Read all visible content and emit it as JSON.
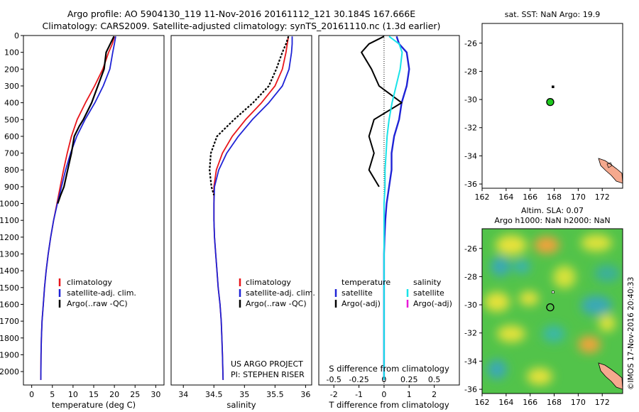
{
  "header": {
    "line1": "Argo profile: AO 5904130_119 11-Nov-2016 20161112_121 30.184S 167.666E",
    "line2": "Climatology: CARS2009. Satellite-adjusted climatology: synTS_20161110.nc (1.3d earlier)"
  },
  "colors": {
    "climatology": "#e8161b",
    "satellite": "#1f23d6",
    "argo": "#000000",
    "s_satellite": "#19e3e8",
    "s_argo": "#e81ad8",
    "land": "#f5a98e",
    "float_marker": "#1ec81e"
  },
  "legends": {
    "temp_panel": [
      "climatology",
      "satellite-adj. clim.",
      "Argo(..raw -QC)"
    ],
    "sal_panel": [
      "climatology",
      "satellite-adj. clim.",
      "Argo(..raw -QC)"
    ],
    "diff_panel": {
      "temperature_heading": "temperature",
      "salinity_heading": "salinity",
      "temperature_items": [
        "satellite",
        "Argo(-adj)"
      ],
      "salinity_items": [
        "satellite",
        "Argo(-adj)"
      ]
    }
  },
  "credits": {
    "project": "US ARGO PROJECT",
    "pi": "PI: STEPHEN RISER",
    "imos": "©IMOS 17-Nov-2016 20:40:33"
  },
  "map_top_title": "sat. SST: NaN Argo: 19.9",
  "map_bottom_title1": "Altim. SLA: 0.07",
  "map_bottom_title2": "Argo h1000: NaN h2000: NaN",
  "chart_data": [
    {
      "type": "line",
      "panel": "temperature",
      "xlabel": "temperature (deg C)",
      "ylabel": "",
      "xlim": [
        -2,
        32
      ],
      "ylim": [
        2080,
        0
      ],
      "y_inverted": true,
      "xticks": [
        0,
        5,
        10,
        15,
        20,
        25,
        30
      ],
      "yticks": [
        0,
        100,
        200,
        300,
        400,
        500,
        600,
        700,
        800,
        900,
        1000,
        1100,
        1200,
        1300,
        1400,
        1500,
        1600,
        1700,
        1800,
        1900,
        2000
      ],
      "series": [
        {
          "name": "climatology",
          "color_key": "climatology",
          "x": [
            20.0,
            19.5,
            18.6,
            17.2,
            15.2,
            13.0,
            11.0,
            9.6,
            8.6,
            7.7,
            6.9,
            6.1,
            5.3,
            4.6,
            4.0,
            3.5,
            3.1,
            2.8,
            2.5,
            2.35,
            2.25,
            2.2
          ],
          "y": [
            5,
            50,
            100,
            200,
            300,
            400,
            500,
            600,
            700,
            800,
            900,
            1000,
            1100,
            1200,
            1300,
            1400,
            1500,
            1600,
            1700,
            1800,
            1900,
            2050
          ]
        },
        {
          "name": "satellite-adj. clim.",
          "color_key": "satellite",
          "x": [
            20.3,
            20.0,
            19.6,
            18.9,
            17.3,
            15.3,
            12.9,
            10.9,
            9.4,
            8.2,
            7.2,
            6.2,
            5.3,
            4.6,
            4.0,
            3.5,
            3.1,
            2.8,
            2.5,
            2.35,
            2.25,
            2.2
          ],
          "y": [
            5,
            50,
            100,
            200,
            300,
            400,
            500,
            600,
            700,
            800,
            900,
            1000,
            1100,
            1200,
            1300,
            1400,
            1500,
            1600,
            1700,
            1800,
            1900,
            2050
          ]
        },
        {
          "name": "Argo(..raw -QC)",
          "color_key": "argo",
          "x": [
            19.9,
            19.0,
            18.0,
            17.5,
            16.0,
            14.5,
            12.5,
            11.5,
            10.3,
            9.6,
            8.7,
            7.8,
            7.0,
            6.3
          ],
          "y": [
            5,
            50,
            100,
            200,
            300,
            400,
            500,
            540,
            600,
            700,
            800,
            900,
            950,
            1000
          ]
        }
      ]
    },
    {
      "type": "line",
      "panel": "salinity",
      "xlabel": "salinity",
      "ylabel": "",
      "xlim": [
        33.8,
        36.1
      ],
      "ylim": [
        2080,
        0
      ],
      "y_inverted": true,
      "xticks": [
        34,
        34.5,
        35,
        35.5,
        36
      ],
      "series": [
        {
          "name": "climatology",
          "color_key": "climatology",
          "x": [
            35.72,
            35.7,
            35.68,
            35.62,
            35.5,
            35.28,
            35.02,
            34.8,
            34.64,
            34.54,
            34.5,
            34.5,
            34.5,
            34.51,
            34.53,
            34.55,
            34.57,
            34.6,
            34.62,
            34.63,
            34.64,
            34.65
          ],
          "y": [
            5,
            50,
            100,
            200,
            300,
            400,
            500,
            600,
            700,
            800,
            900,
            1000,
            1100,
            1200,
            1300,
            1400,
            1500,
            1600,
            1700,
            1800,
            1900,
            2050
          ]
        },
        {
          "name": "satellite-adj. clim.",
          "color_key": "satellite",
          "x": [
            35.78,
            35.78,
            35.77,
            35.73,
            35.62,
            35.4,
            35.13,
            34.9,
            34.71,
            34.58,
            34.51,
            34.5,
            34.5,
            34.51,
            34.53,
            34.55,
            34.57,
            34.6,
            34.62,
            34.63,
            34.64,
            34.65
          ],
          "y": [
            5,
            50,
            100,
            200,
            300,
            400,
            500,
            600,
            700,
            800,
            900,
            1000,
            1100,
            1200,
            1300,
            1400,
            1500,
            1600,
            1700,
            1800,
            1900,
            2050
          ]
        },
        {
          "name": "Argo(..raw -QC)",
          "color_key": "argo",
          "x": [
            35.72,
            35.68,
            35.62,
            35.52,
            35.4,
            35.14,
            34.83,
            34.55,
            34.45,
            34.43,
            34.46,
            34.5
          ],
          "y": [
            5,
            50,
            100,
            200,
            300,
            400,
            500,
            600,
            700,
            800,
            900,
            950
          ]
        }
      ]
    },
    {
      "type": "line",
      "panel": "difference",
      "xlabel": "T difference from climatology",
      "xlabel_top": "S difference from climatology",
      "xlim": [
        -2.6,
        3.0
      ],
      "xlim_salinity": [
        -0.65,
        0.75
      ],
      "ylim": [
        2080,
        0
      ],
      "y_inverted": true,
      "xticks": [
        -2,
        -1,
        0,
        1,
        2
      ],
      "xticks_salinity": [
        -0.5,
        -0.25,
        0,
        0.25,
        0.5
      ],
      "series": [
        {
          "name": "satellite (temperature)",
          "color_key": "satellite",
          "x": [
            0.5,
            0.6,
            0.9,
            1.0,
            0.9,
            0.7,
            0.6,
            0.4,
            0.3,
            0.3,
            0.2,
            0.1,
            0.05,
            0.02,
            0.0,
            0.0,
            0.0,
            0.0,
            0.0,
            0.0,
            0.0
          ],
          "y": [
            5,
            50,
            100,
            200,
            300,
            400,
            500,
            600,
            700,
            800,
            900,
            1000,
            1100,
            1200,
            1300,
            1400,
            1500,
            1600,
            1700,
            1800,
            2050
          ]
        },
        {
          "name": "Argo(-adj) (temperature)",
          "color_key": "argo",
          "x": [
            0.0,
            -0.6,
            -0.9,
            -0.5,
            -0.2,
            0.7,
            -0.4,
            -0.6,
            -0.4,
            -0.6,
            -0.2
          ],
          "y": [
            5,
            50,
            100,
            200,
            300,
            400,
            500,
            600,
            700,
            800,
            900
          ]
        },
        {
          "name": "satellite (salinity)",
          "color_key": "s_satellite",
          "x": [
            0.05,
            0.15,
            0.18,
            0.16,
            0.12,
            0.08,
            0.05,
            0.03,
            0.02,
            0.01,
            0.01,
            0.0,
            0.0,
            0.0,
            0.0,
            0.0,
            0.0,
            0.0,
            0.0,
            0.0,
            0.0
          ],
          "y": [
            5,
            50,
            100,
            200,
            300,
            400,
            500,
            600,
            700,
            800,
            900,
            1000,
            1100,
            1200,
            1300,
            1400,
            1500,
            1600,
            1700,
            1800,
            2050
          ]
        }
      ]
    },
    {
      "type": "scatter",
      "panel": "sst_map",
      "xlim": [
        162,
        173.7
      ],
      "ylim": [
        -36.3,
        -24.6
      ],
      "xticks": [
        162,
        164,
        166,
        168,
        170,
        172
      ],
      "yticks": [
        -36,
        -34,
        -32,
        -30,
        -28,
        -26
      ],
      "points": [
        {
          "x": 167.67,
          "y": -30.18,
          "marker": "float"
        },
        {
          "x": 167.9,
          "y": -29.1,
          "marker": "dot"
        }
      ]
    },
    {
      "type": "heatmap",
      "panel": "sla_map",
      "xlim": [
        162,
        173.7
      ],
      "ylim": [
        -36.3,
        -24.6
      ],
      "xticks": [
        162,
        164,
        166,
        168,
        170,
        172
      ],
      "yticks": [
        -36,
        -34,
        -32,
        -30,
        -28,
        -26
      ],
      "points": [
        {
          "x": 167.67,
          "y": -30.18,
          "marker": "float"
        },
        {
          "x": 167.9,
          "y": -29.1,
          "marker": "dot"
        }
      ]
    }
  ]
}
